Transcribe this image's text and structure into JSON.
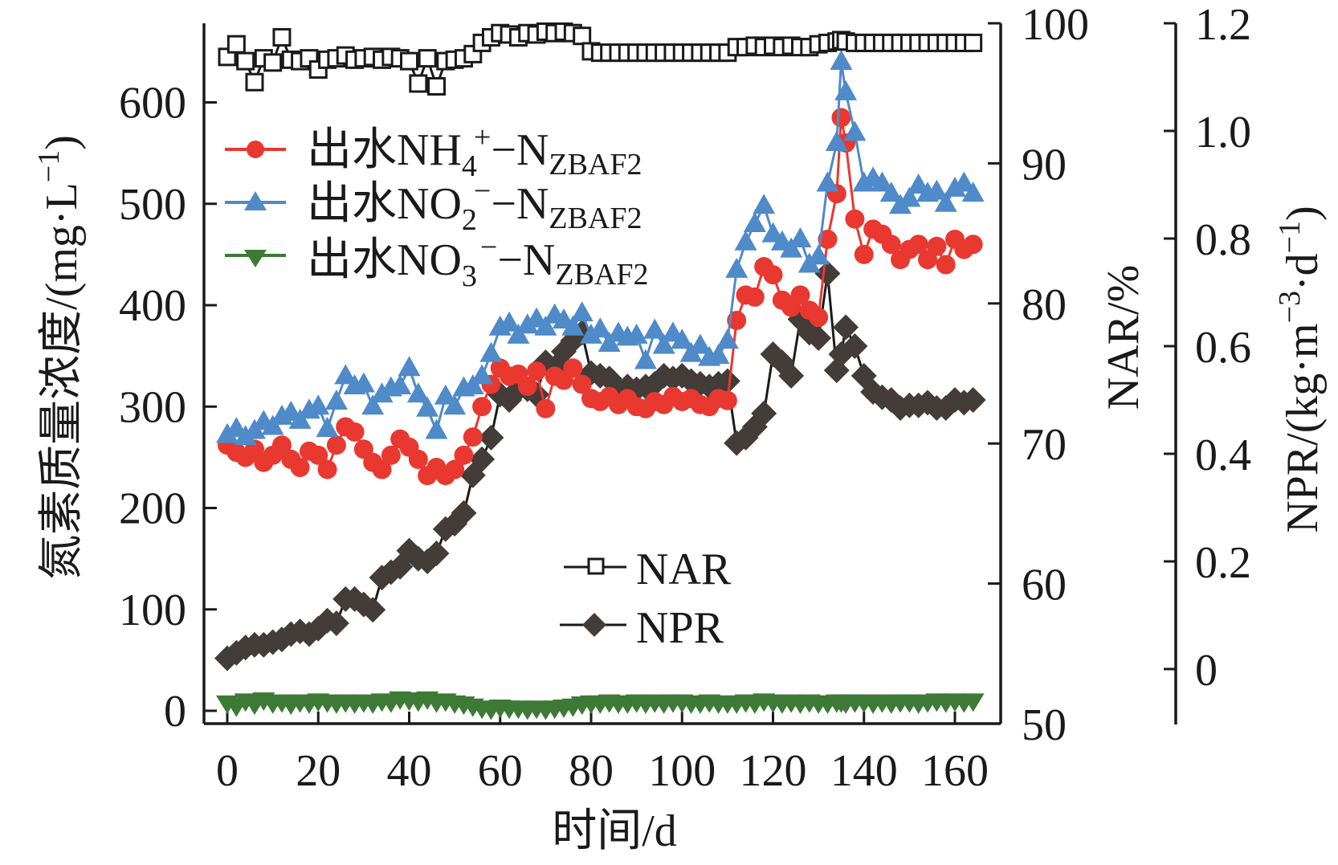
{
  "chart_data": {
    "type": "line",
    "title": "",
    "xlabel": "时间/d",
    "ylabel_left": "氮素质量浓度/(mg·L",
    "ylabel_left_sup": "−1",
    "ylabel_left_close": ")",
    "ylabel_right1": "NAR/%",
    "ylabel_right2": "NPR/(kg·m",
    "ylabel_right2_sup1": "−3",
    "ylabel_right2_mid": "·d",
    "ylabel_right2_sup2": "−1",
    "ylabel_right2_close": ")",
    "xlim": [
      -6,
      171
    ],
    "xticks": [
      0,
      20,
      40,
      60,
      80,
      100,
      120,
      140,
      160
    ],
    "xtick_labels": [
      "0",
      "20",
      "40",
      "60",
      "80",
      "100",
      "120",
      "140",
      "160"
    ],
    "ylim_left": [
      -13,
      678
    ],
    "yticks_left": [
      0,
      100,
      200,
      300,
      400,
      500,
      600
    ],
    "ytick_labels_left": [
      "0",
      "100",
      "200",
      "300",
      "400",
      "500",
      "600"
    ],
    "ylim_right1": [
      50,
      100
    ],
    "yticks_right1": [
      50,
      60,
      70,
      80,
      90,
      100
    ],
    "ytick_labels_right1": [
      "50",
      "60",
      "70",
      "80",
      "90",
      "100"
    ],
    "ylim_right2": [
      -0.103,
      1.2
    ],
    "yticks_right2": [
      0,
      0.2,
      0.4,
      0.6,
      0.8,
      1.0,
      1.2
    ],
    "ytick_labels_right2": [
      "0",
      "0.2",
      "0.4",
      "0.6",
      "0.8",
      "1.0",
      "1.2"
    ],
    "grid": false,
    "x": [
      0,
      2,
      4,
      6,
      8,
      10,
      12,
      14,
      16,
      18,
      20,
      22,
      24,
      26,
      28,
      30,
      32,
      34,
      36,
      38,
      40,
      42,
      44,
      46,
      48,
      50,
      52,
      54,
      56,
      58,
      60,
      62,
      64,
      66,
      68,
      70,
      72,
      74,
      76,
      78,
      80,
      82,
      84,
      86,
      88,
      90,
      92,
      94,
      96,
      98,
      100,
      102,
      104,
      106,
      108,
      110,
      112,
      114,
      116,
      118,
      120,
      122,
      124,
      126,
      128,
      130,
      132,
      134,
      135,
      136,
      138,
      140,
      142,
      144,
      146,
      148,
      150,
      152,
      154,
      156,
      158,
      160,
      162,
      164
    ],
    "series": [
      {
        "name": "出水NH4+−NZBAF2",
        "axis": "left",
        "marker": "circle",
        "color": "#e8382f",
        "values": [
          262,
          255,
          250,
          258,
          245,
          252,
          262,
          248,
          240,
          256,
          252,
          238,
          262,
          280,
          275,
          258,
          245,
          238,
          252,
          268,
          260,
          248,
          232,
          240,
          232,
          238,
          252,
          270,
          300,
          322,
          338,
          330,
          332,
          320,
          335,
          298,
          330,
          326,
          338,
          322,
          308,
          305,
          310,
          302,
          308,
          300,
          298,
          305,
          302,
          310,
          305,
          308,
          302,
          300,
          308,
          306,
          385,
          410,
          408,
          438,
          430,
          405,
          398,
          410,
          395,
          388,
          465,
          510,
          585,
          560,
          485,
          450,
          475,
          470,
          460,
          445,
          455,
          460,
          445,
          458,
          440,
          465,
          455,
          460
        ]
      },
      {
        "name": "出水NO2−−NZBAF2",
        "axis": "left",
        "marker": "triangle-up",
        "color": "#4f8ac9",
        "values": [
          272,
          278,
          270,
          276,
          285,
          280,
          290,
          294,
          286,
          296,
          300,
          278,
          305,
          330,
          320,
          322,
          300,
          312,
          318,
          320,
          338,
          312,
          298,
          276,
          310,
          300,
          318,
          320,
          330,
          352,
          378,
          382,
          370,
          380,
          386,
          378,
          390,
          385,
          378,
          392,
          370,
          376,
          362,
          372,
          368,
          370,
          345,
          375,
          360,
          372,
          365,
          352,
          360,
          348,
          350,
          365,
          435,
          462,
          480,
          498,
          470,
          462,
          455,
          465,
          440,
          448,
          520,
          560,
          640,
          610,
          570,
          520,
          525,
          520,
          510,
          498,
          505,
          518,
          510,
          512,
          500,
          515,
          520,
          510
        ]
      },
      {
        "name": "出水NO3−−NZBAF2",
        "axis": "left",
        "marker": "triangle-down",
        "color": "#3d7a35",
        "values": [
          8,
          5,
          10,
          7,
          11,
          8,
          9,
          7,
          9,
          8,
          10,
          9,
          8,
          9,
          8,
          9,
          8,
          10,
          9,
          12,
          11,
          10,
          12,
          9,
          10,
          8,
          7,
          5,
          3,
          2,
          4,
          3,
          3,
          2,
          3,
          2,
          3,
          4,
          5,
          7,
          8,
          8,
          9,
          8,
          8,
          9,
          8,
          9,
          8,
          9,
          9,
          8,
          8,
          9,
          8,
          8,
          8,
          9,
          8,
          10,
          9,
          8,
          9,
          8,
          9,
          8,
          8,
          9,
          9,
          8,
          9,
          9,
          8,
          9,
          8,
          9,
          9,
          8,
          9,
          10,
          9,
          10,
          9,
          10
        ]
      },
      {
        "name": "NAR",
        "axis": "right1",
        "marker": "square-open",
        "color": "#1a1a1a",
        "values": [
          97.6,
          98.5,
          97.3,
          95.8,
          97.5,
          97.2,
          99.0,
          97.4,
          97.3,
          97.5,
          96.7,
          97.4,
          97.5,
          97.7,
          97.4,
          97.5,
          97.6,
          97.4,
          97.6,
          97.5,
          97.3,
          95.7,
          97.5,
          95.5,
          97.3,
          97.4,
          97.5,
          97.8,
          98.6,
          99.0,
          99.3,
          99.2,
          99.0,
          99.3,
          99.2,
          99.4,
          99.3,
          99.4,
          99.3,
          99.1,
          98.0,
          97.9,
          97.9,
          97.9,
          97.9,
          97.9,
          97.9,
          97.9,
          97.9,
          97.9,
          97.9,
          97.9,
          97.9,
          97.9,
          97.9,
          97.9,
          98.3,
          98.3,
          98.4,
          98.3,
          98.4,
          98.3,
          98.4,
          98.3,
          98.3,
          98.5,
          98.6,
          98.7,
          98.8,
          98.7,
          98.6,
          98.6,
          98.6,
          98.6,
          98.6,
          98.6,
          98.6,
          98.6,
          98.6,
          98.6,
          98.6,
          98.6,
          98.6,
          98.6
        ]
      },
      {
        "name": "NPR",
        "axis": "right2",
        "marker": "diamond",
        "color": "#433c38",
        "values": [
          0.02,
          0.03,
          0.04,
          0.045,
          0.045,
          0.05,
          0.055,
          0.065,
          0.07,
          0.065,
          0.075,
          0.09,
          0.085,
          0.13,
          0.13,
          0.12,
          0.11,
          0.17,
          0.18,
          0.19,
          0.22,
          0.205,
          0.2,
          0.215,
          0.26,
          0.27,
          0.29,
          0.36,
          0.39,
          0.43,
          0.51,
          0.5,
          0.52,
          0.52,
          0.51,
          0.57,
          0.56,
          0.59,
          0.61,
          0.625,
          0.55,
          0.545,
          0.54,
          0.52,
          0.525,
          0.52,
          0.525,
          0.53,
          0.545,
          0.54,
          0.545,
          0.535,
          0.53,
          0.525,
          0.53,
          0.535,
          0.42,
          0.43,
          0.45,
          0.475,
          0.585,
          0.57,
          0.545,
          0.65,
          0.625,
          0.615,
          0.735,
          0.555,
          0.585,
          0.635,
          0.6,
          0.545,
          0.515,
          0.505,
          0.5,
          0.485,
          0.49,
          0.49,
          0.495,
          0.485,
          0.485,
          0.5,
          0.495,
          0.5
        ]
      }
    ],
    "legend": [
      {
        "series": 0,
        "prefix": "出水NH",
        "sub1": "4",
        "sup1": "+",
        "mid": "−N",
        "sub2": "ZBAF2",
        "position": "top-left"
      },
      {
        "series": 1,
        "prefix": "出水NO",
        "sub1": "2",
        "sup1": "−",
        "mid": "−N",
        "sub2": "ZBAF2",
        "position": "top-left"
      },
      {
        "series": 2,
        "prefix": "出水NO",
        "sub1": "3",
        "sup1": "−",
        "mid": "−N",
        "sub2": "ZBAF2",
        "position": "top-left"
      },
      {
        "series": 3,
        "label": "NAR",
        "position": "bottom-center"
      },
      {
        "series": 4,
        "label": "NPR",
        "position": "bottom-center"
      }
    ]
  }
}
